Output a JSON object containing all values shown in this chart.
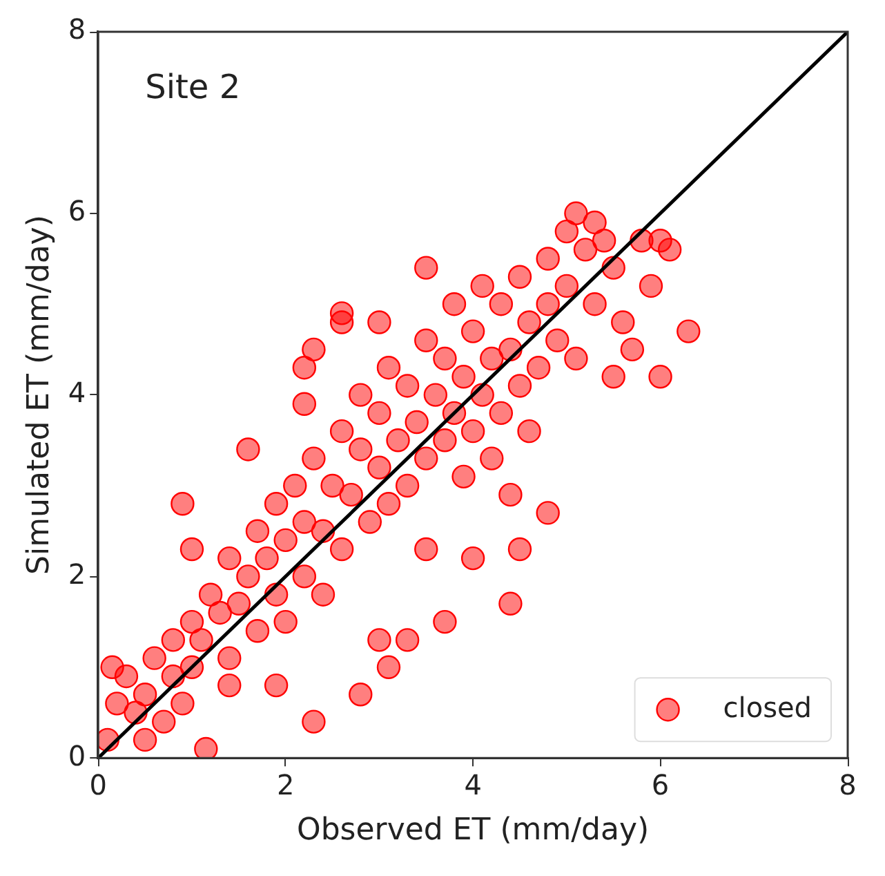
{
  "chart_data": {
    "type": "scatter",
    "xlabel": "Observed ET (mm/day)",
    "ylabel": "Simulated ET (mm/day)",
    "annotations": [
      "Site 2"
    ],
    "xlim": [
      0,
      8
    ],
    "ylim": [
      0,
      8
    ],
    "xticks": [
      0,
      2,
      4,
      6,
      8
    ],
    "yticks": [
      0,
      2,
      4,
      6,
      8
    ],
    "legend": "bottom right",
    "marker": "circle",
    "series": [
      {
        "name": "closed",
        "color": "#ff0000",
        "x": [
          0.1,
          0.2,
          0.3,
          0.4,
          0.5,
          0.5,
          0.6,
          0.7,
          0.8,
          0.8,
          0.9,
          1.0,
          1.0,
          1.1,
          1.2,
          1.3,
          1.4,
          1.4,
          1.5,
          1.6,
          1.7,
          1.7,
          1.8,
          1.9,
          1.9,
          2.0,
          2.0,
          2.1,
          2.2,
          2.2,
          2.3,
          2.4,
          2.4,
          2.5,
          2.6,
          2.6,
          2.7,
          2.8,
          2.8,
          2.9,
          3.0,
          3.0,
          3.1,
          3.1,
          3.2,
          3.3,
          3.3,
          3.4,
          3.5,
          3.5,
          3.6,
          3.7,
          3.7,
          3.8,
          3.8,
          3.9,
          4.0,
          4.0,
          4.1,
          4.1,
          4.2,
          4.3,
          4.3,
          4.4,
          4.5,
          4.5,
          4.6,
          4.7,
          4.8,
          4.8,
          4.9,
          5.0,
          5.0,
          5.1,
          5.1,
          5.2,
          5.3,
          5.3,
          5.4,
          5.5,
          5.5,
          5.6,
          5.8,
          5.9,
          6.0,
          6.1,
          6.0,
          5.7,
          4.6,
          4.2,
          3.9,
          2.6,
          3.0,
          2.3,
          0.15,
          1.15,
          1.6,
          0.9,
          1.0,
          2.2,
          2.2,
          6.3,
          3.5,
          2.6,
          4.4,
          4.8,
          4.5,
          4.4,
          3.7,
          4.0,
          3.5,
          3.3,
          3.1,
          2.8,
          2.3,
          1.9,
          1.4,
          3.0
        ],
        "values": [
          0.2,
          0.6,
          0.9,
          0.5,
          0.7,
          0.2,
          1.1,
          0.4,
          0.9,
          1.3,
          0.6,
          1.5,
          1.0,
          1.3,
          1.8,
          1.6,
          2.2,
          1.1,
          1.7,
          2.0,
          2.5,
          1.4,
          2.2,
          1.8,
          2.8,
          2.4,
          1.5,
          3.0,
          2.6,
          2.0,
          3.3,
          2.5,
          1.8,
          3.0,
          3.6,
          2.3,
          2.9,
          3.4,
          4.0,
          2.6,
          3.2,
          3.8,
          4.3,
          2.8,
          3.5,
          3.0,
          4.1,
          3.7,
          4.6,
          3.3,
          4.0,
          3.5,
          4.4,
          5.0,
          3.8,
          4.2,
          3.6,
          4.7,
          5.2,
          4.0,
          4.4,
          3.8,
          5.0,
          4.5,
          5.3,
          4.1,
          4.8,
          4.3,
          5.5,
          5.0,
          4.6,
          5.8,
          5.2,
          4.4,
          6.0,
          5.6,
          5.0,
          5.9,
          5.7,
          5.4,
          4.2,
          4.8,
          5.7,
          5.2,
          5.7,
          5.6,
          4.2,
          4.5,
          3.6,
          3.3,
          3.1,
          4.9,
          4.8,
          4.5,
          1.0,
          0.1,
          3.4,
          2.8,
          2.3,
          4.3,
          3.9,
          4.7,
          5.4,
          4.8,
          2.9,
          2.7,
          2.3,
          1.7,
          1.5,
          2.2,
          2.3,
          1.3,
          1.0,
          0.7,
          0.4,
          0.8,
          0.8,
          1.3
        ]
      },
      {
        "type": "line",
        "color": "#000000",
        "x": [
          0,
          8
        ],
        "values": [
          0,
          8
        ],
        "line_style": "solid",
        "marker": "none"
      }
    ]
  }
}
